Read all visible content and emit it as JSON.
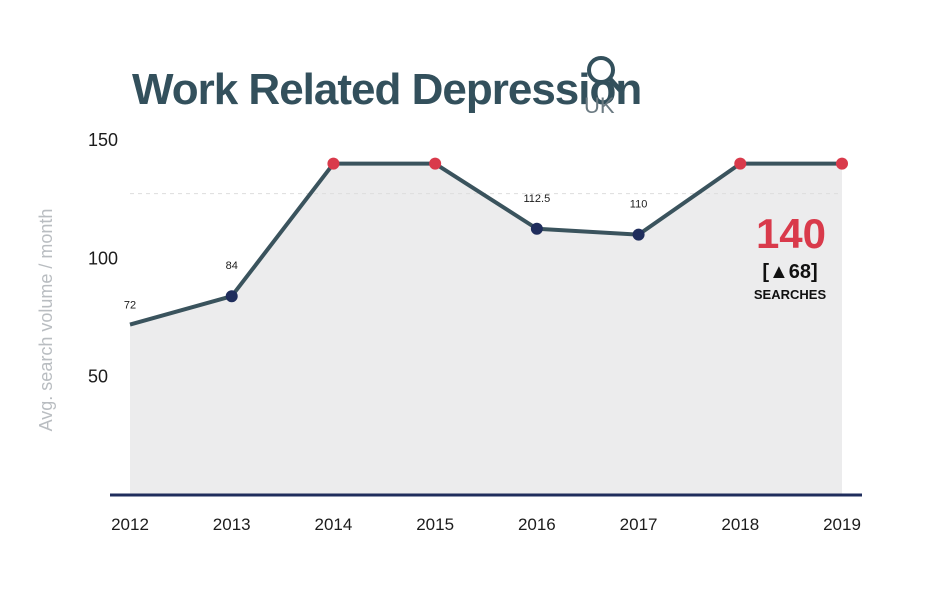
{
  "title": "Work Related Depression",
  "subtitle": "UK",
  "colors": {
    "line": "#3a535d",
    "highlight_point": "#d93a4b",
    "normal_point": "#1f2d5c",
    "axis": "#1f2d5c",
    "area": "#ececed",
    "title": "#33505c",
    "callout": "#d93a4b"
  },
  "icons": {
    "search": "search-icon"
  },
  "callout": {
    "value": "140",
    "change": "[▲68]",
    "unit": "SEARCHES"
  },
  "chart_data": {
    "type": "line",
    "title": "Work Related Depression",
    "subtitle": "UK",
    "xlabel": "",
    "ylabel": "Avg. search volume / month",
    "x": [
      "2012",
      "2013",
      "2014",
      "2015",
      "2016",
      "2017",
      "2018",
      "2019"
    ],
    "series": [
      {
        "values": [
          72,
          84,
          140,
          140,
          112.5,
          110,
          140,
          140
        ],
        "labels": [
          "72",
          "84",
          "",
          "",
          "112.5",
          "110",
          "",
          ""
        ],
        "highlight": [
          false,
          true,
          true,
          true,
          true,
          true,
          true,
          true
        ],
        "highlight_color": [
          "",
          "normal",
          "red",
          "red",
          "normal",
          "normal",
          "red",
          "red"
        ]
      }
    ],
    "yticks": [
      50,
      100,
      150
    ],
    "ylim": [
      0,
      160
    ],
    "grid": false,
    "legend": "none",
    "area_fill": true
  }
}
